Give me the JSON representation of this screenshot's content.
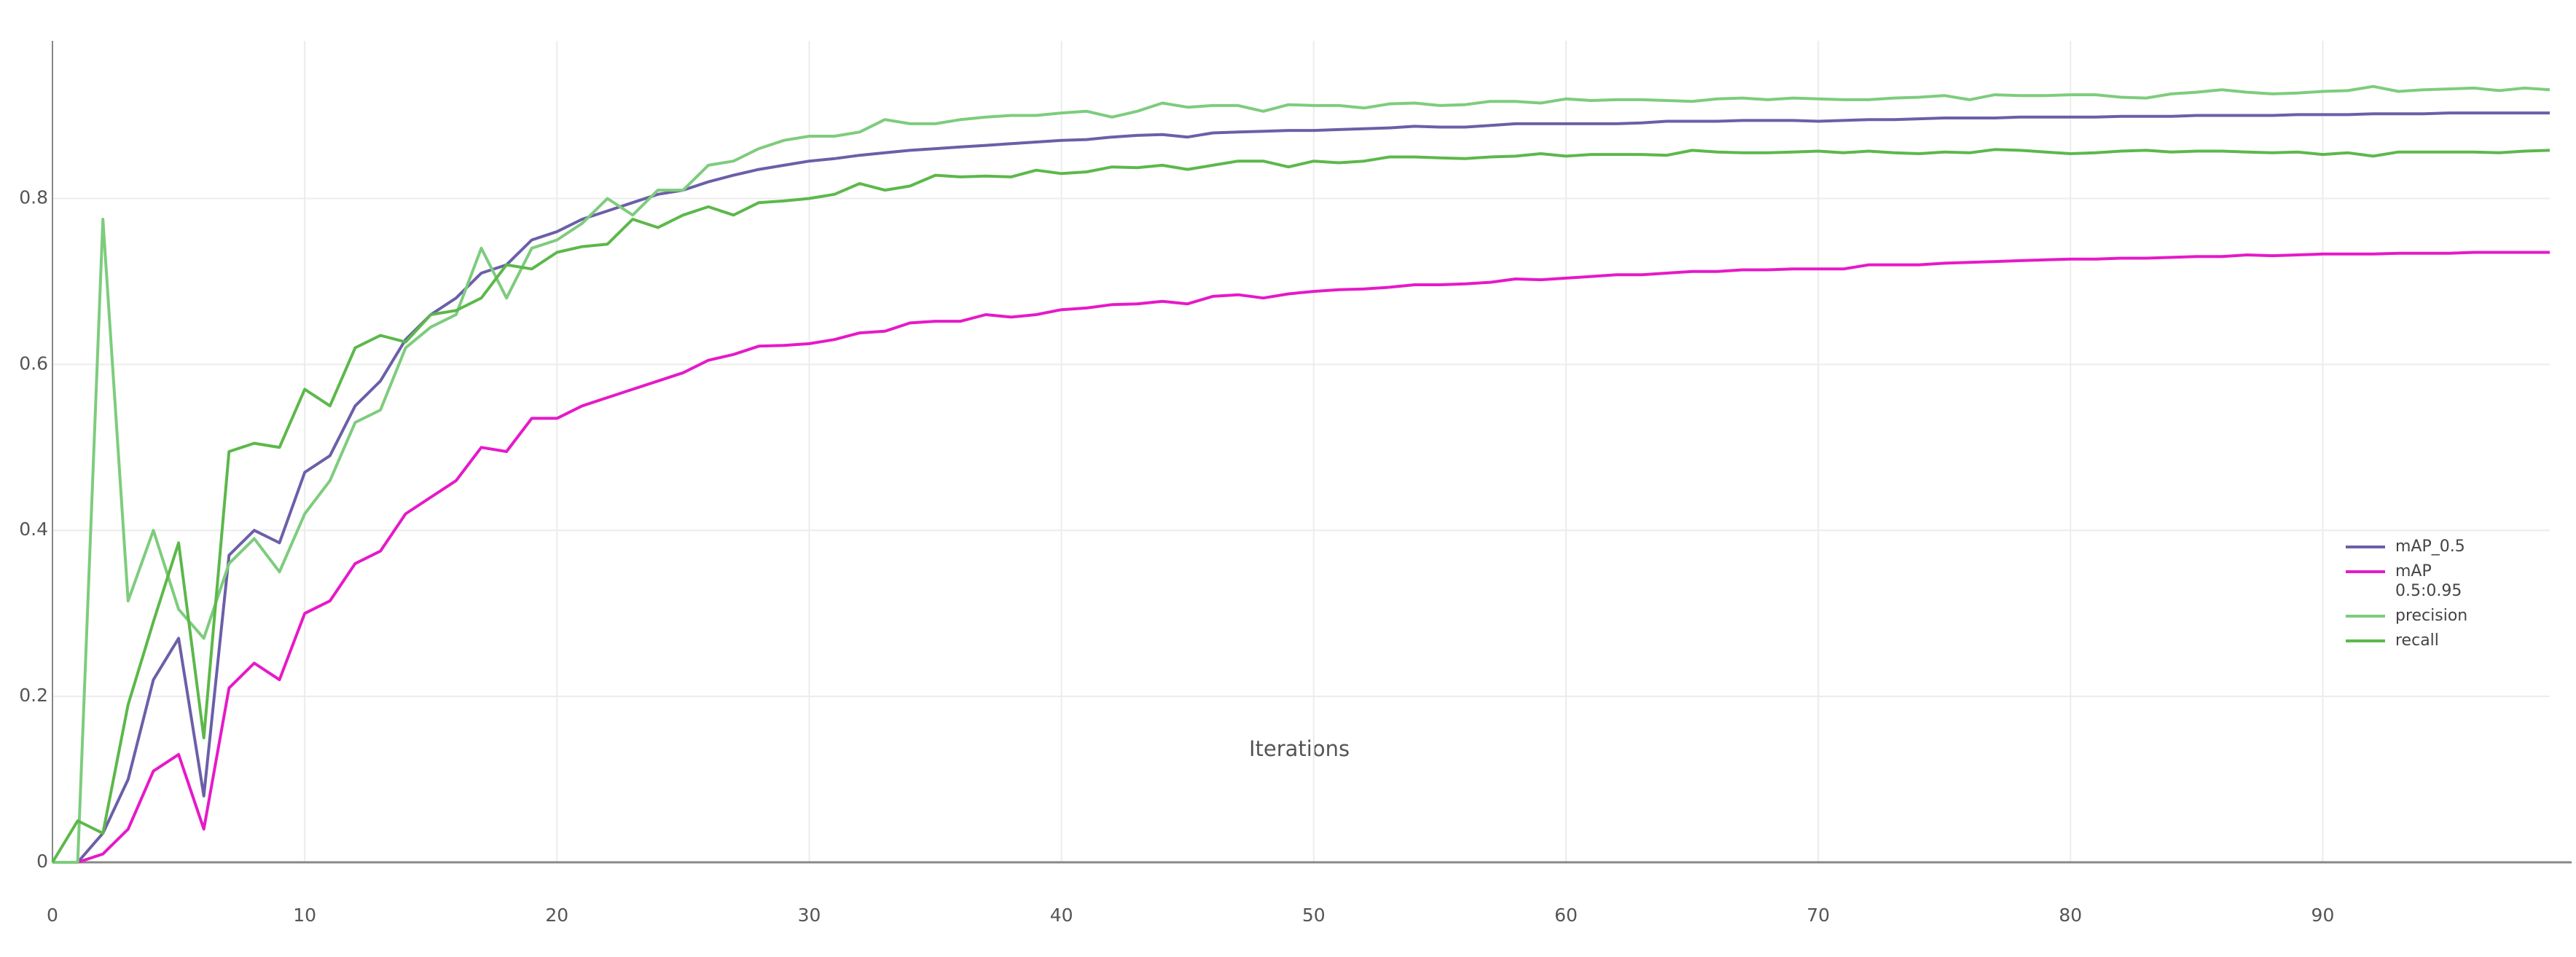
{
  "chart_data": {
    "type": "line",
    "x_label": "Iterations",
    "x": [
      0,
      1,
      2,
      3,
      4,
      5,
      6,
      7,
      8,
      9,
      10,
      11,
      12,
      13,
      14,
      15,
      16,
      17,
      18,
      19,
      20,
      21,
      22,
      23,
      24,
      25,
      26,
      27,
      28,
      29,
      30,
      31,
      32,
      33,
      34,
      35,
      36,
      37,
      38,
      39,
      40,
      41,
      42,
      43,
      44,
      45,
      46,
      47,
      48,
      49,
      50,
      51,
      52,
      53,
      54,
      55,
      56,
      57,
      58,
      59,
      60,
      61,
      62,
      63,
      64,
      65,
      66,
      67,
      68,
      69,
      70,
      71,
      72,
      73,
      74,
      75,
      76,
      77,
      78,
      79,
      80,
      81,
      82,
      83,
      84,
      85,
      86,
      87,
      88,
      89,
      90,
      91,
      92,
      93,
      94,
      95,
      96,
      97,
      98,
      99
    ],
    "xlim": [
      0,
      99
    ],
    "xticks": [
      0,
      10,
      20,
      30,
      40,
      50,
      60,
      70,
      80,
      90
    ],
    "ylim": [
      0,
      0.99
    ],
    "yticks": [
      0,
      0.2,
      0.4,
      0.6,
      0.8
    ],
    "grid": true,
    "legend": "right",
    "series": [
      {
        "name": "mAP_0.5",
        "color": "#6b5fa8",
        "values": [
          0,
          0,
          0.035,
          0.1,
          0.22,
          0.27,
          0.08,
          0.37,
          0.4,
          0.385,
          0.47,
          0.49,
          0.55,
          0.58,
          0.63,
          0.66,
          0.68,
          0.71,
          0.72,
          0.75,
          0.76,
          0.775,
          0.785,
          0.795,
          0.805,
          0.81,
          0.82,
          0.828,
          0.835,
          0.84,
          0.845,
          0.848,
          0.852,
          0.855,
          0.858,
          0.86,
          0.862,
          0.864,
          0.866,
          0.868,
          0.87,
          0.871,
          0.874,
          0.876,
          0.877,
          0.874,
          0.879,
          0.88,
          0.881,
          0.882,
          0.882,
          0.883,
          0.884,
          0.885,
          0.887,
          0.886,
          0.886,
          0.888,
          0.89,
          0.89,
          0.89,
          0.89,
          0.89,
          0.891,
          0.893,
          0.893,
          0.893,
          0.894,
          0.894,
          0.894,
          0.893,
          0.894,
          0.895,
          0.895,
          0.896,
          0.897,
          0.897,
          0.897,
          0.898,
          0.898,
          0.898,
          0.898,
          0.899,
          0.899,
          0.899,
          0.9,
          0.9,
          0.9,
          0.9,
          0.901,
          0.901,
          0.901,
          0.902,
          0.902,
          0.902,
          0.903,
          0.903,
          0.903,
          0.903,
          0.903
        ]
      },
      {
        "name": "mAP 0.5:0.95",
        "color": "#e619c8",
        "values": [
          0,
          0,
          0.01,
          0.04,
          0.11,
          0.13,
          0.04,
          0.21,
          0.24,
          0.22,
          0.3,
          0.315,
          0.36,
          0.375,
          0.42,
          0.44,
          0.46,
          0.5,
          0.495,
          0.535,
          0.535,
          0.55,
          0.56,
          0.57,
          0.58,
          0.59,
          0.605,
          0.612,
          0.622,
          0.623,
          0.625,
          0.63,
          0.638,
          0.64,
          0.65,
          0.652,
          0.652,
          0.66,
          0.657,
          0.66,
          0.666,
          0.668,
          0.672,
          0.673,
          0.676,
          0.673,
          0.682,
          0.684,
          0.68,
          0.685,
          0.688,
          0.69,
          0.691,
          0.693,
          0.696,
          0.696,
          0.697,
          0.699,
          0.703,
          0.702,
          0.704,
          0.706,
          0.708,
          0.708,
          0.71,
          0.712,
          0.712,
          0.714,
          0.714,
          0.715,
          0.715,
          0.715,
          0.72,
          0.72,
          0.72,
          0.722,
          0.723,
          0.724,
          0.725,
          0.726,
          0.727,
          0.727,
          0.728,
          0.728,
          0.729,
          0.73,
          0.73,
          0.732,
          0.731,
          0.732,
          0.733,
          0.733,
          0.733,
          0.734,
          0.734,
          0.734,
          0.735,
          0.735,
          0.735,
          0.735
        ]
      },
      {
        "name": "precision",
        "color": "#7dcc7d",
        "values": [
          0,
          0,
          0.775,
          0.315,
          0.4,
          0.305,
          0.27,
          0.36,
          0.39,
          0.35,
          0.42,
          0.46,
          0.53,
          0.545,
          0.62,
          0.645,
          0.66,
          0.74,
          0.68,
          0.74,
          0.75,
          0.77,
          0.8,
          0.78,
          0.81,
          0.81,
          0.84,
          0.845,
          0.86,
          0.87,
          0.875,
          0.875,
          0.88,
          0.895,
          0.89,
          0.89,
          0.895,
          0.898,
          0.9,
          0.9,
          0.903,
          0.905,
          0.898,
          0.905,
          0.915,
          0.91,
          0.912,
          0.912,
          0.905,
          0.913,
          0.912,
          0.912,
          0.909,
          0.914,
          0.915,
          0.912,
          0.913,
          0.917,
          0.917,
          0.915,
          0.92,
          0.918,
          0.919,
          0.919,
          0.918,
          0.917,
          0.92,
          0.921,
          0.919,
          0.921,
          0.92,
          0.919,
          0.919,
          0.921,
          0.922,
          0.924,
          0.919,
          0.925,
          0.924,
          0.924,
          0.925,
          0.925,
          0.922,
          0.921,
          0.926,
          0.928,
          0.931,
          0.928,
          0.926,
          0.927,
          0.929,
          0.93,
          0.935,
          0.929,
          0.931,
          0.932,
          0.933,
          0.93,
          0.933,
          0.931
        ]
      },
      {
        "name": "recall",
        "color": "#5cb84a",
        "values": [
          0,
          0.05,
          0.035,
          0.19,
          0.29,
          0.385,
          0.15,
          0.495,
          0.505,
          0.5,
          0.57,
          0.55,
          0.62,
          0.635,
          0.627,
          0.66,
          0.665,
          0.68,
          0.72,
          0.715,
          0.735,
          0.742,
          0.745,
          0.775,
          0.765,
          0.78,
          0.79,
          0.78,
          0.795,
          0.797,
          0.8,
          0.805,
          0.818,
          0.81,
          0.815,
          0.828,
          0.826,
          0.827,
          0.826,
          0.834,
          0.83,
          0.832,
          0.838,
          0.837,
          0.84,
          0.835,
          0.84,
          0.845,
          0.845,
          0.838,
          0.845,
          0.843,
          0.845,
          0.85,
          0.85,
          0.849,
          0.848,
          0.85,
          0.851,
          0.854,
          0.851,
          0.853,
          0.853,
          0.853,
          0.852,
          0.858,
          0.856,
          0.855,
          0.855,
          0.856,
          0.857,
          0.855,
          0.857,
          0.855,
          0.854,
          0.856,
          0.855,
          0.859,
          0.858,
          0.856,
          0.854,
          0.855,
          0.857,
          0.858,
          0.856,
          0.857,
          0.857,
          0.856,
          0.855,
          0.856,
          0.853,
          0.855,
          0.851,
          0.856,
          0.856,
          0.856,
          0.856,
          0.855,
          0.857,
          0.858
        ]
      }
    ]
  }
}
